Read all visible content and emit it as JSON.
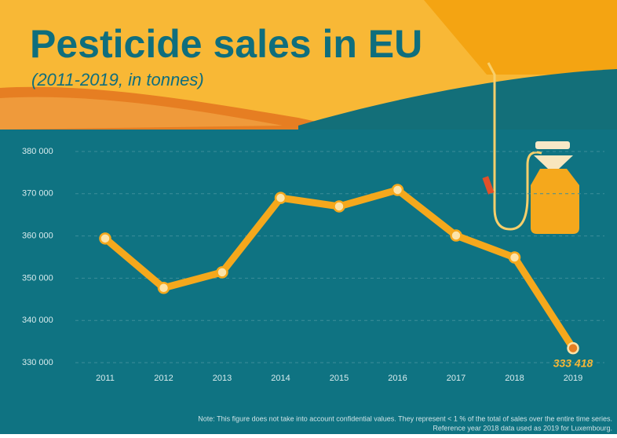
{
  "chart_data": {
    "type": "line",
    "title": "Pesticide sales in EU",
    "subtitle": "(2011-2019, in tonnes)",
    "categories": [
      "2011",
      "2012",
      "2013",
      "2014",
      "2015",
      "2016",
      "2017",
      "2018",
      "2019"
    ],
    "values": [
      359400,
      347700,
      351400,
      369000,
      367000,
      370900,
      360100,
      354900,
      333418
    ],
    "value_labels": [
      null,
      null,
      null,
      null,
      null,
      null,
      null,
      null,
      "333 418"
    ],
    "color": "#f5a81c",
    "ylim": [
      330000,
      380000
    ],
    "yticks": [
      {
        "value": 330000,
        "label": "330 000"
      },
      {
        "value": 340000,
        "label": "340 000"
      },
      {
        "value": 350000,
        "label": "350 000"
      },
      {
        "value": 360000,
        "label": "360 000"
      },
      {
        "value": 370000,
        "label": "370 000"
      },
      {
        "value": 380000,
        "label": "380 000"
      }
    ],
    "grid": true,
    "note": [
      "Note: This figure does not take into account confidential values. They represent < 1 % of the total of sales over the entire time series.",
      "Reference year 2018 data used as 2019 for Luxembourg."
    ]
  }
}
